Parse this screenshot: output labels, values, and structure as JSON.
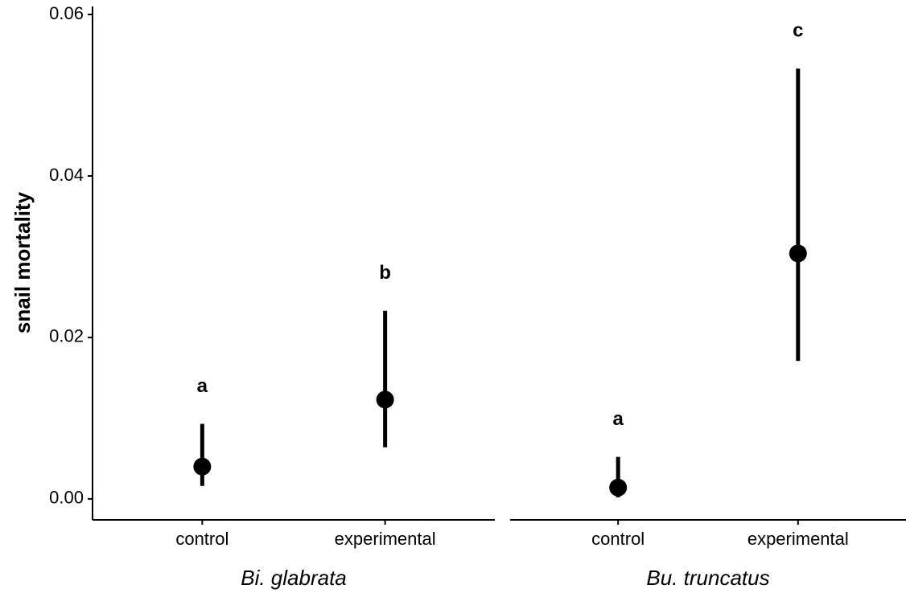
{
  "chart_data": {
    "type": "pointrange",
    "ylabel": "snail mortality",
    "color": "#000000",
    "ylim": [
      -0.0026,
      0.061
    ],
    "yticks": [
      {
        "value": 0,
        "label": "0.00"
      },
      0.02,
      0.04,
      0.06
    ],
    "panels": [
      {
        "title": "Bi. glabrata",
        "categories": [
          "control",
          "experimental"
        ],
        "values": [
          0.004,
          0.0123
        ],
        "lower": [
          0.0016,
          0.0064
        ],
        "upper": [
          0.0093,
          0.0233
        ],
        "letters": [
          "a",
          "b"
        ]
      },
      {
        "title": "Bu. truncatus",
        "categories": [
          "control",
          "experimental"
        ],
        "values": [
          0.0014,
          0.0304
        ],
        "lower": [
          0.0002,
          0.0171
        ],
        "upper": [
          0.0052,
          0.0533
        ],
        "letters": [
          "a",
          "c"
        ]
      }
    ]
  }
}
